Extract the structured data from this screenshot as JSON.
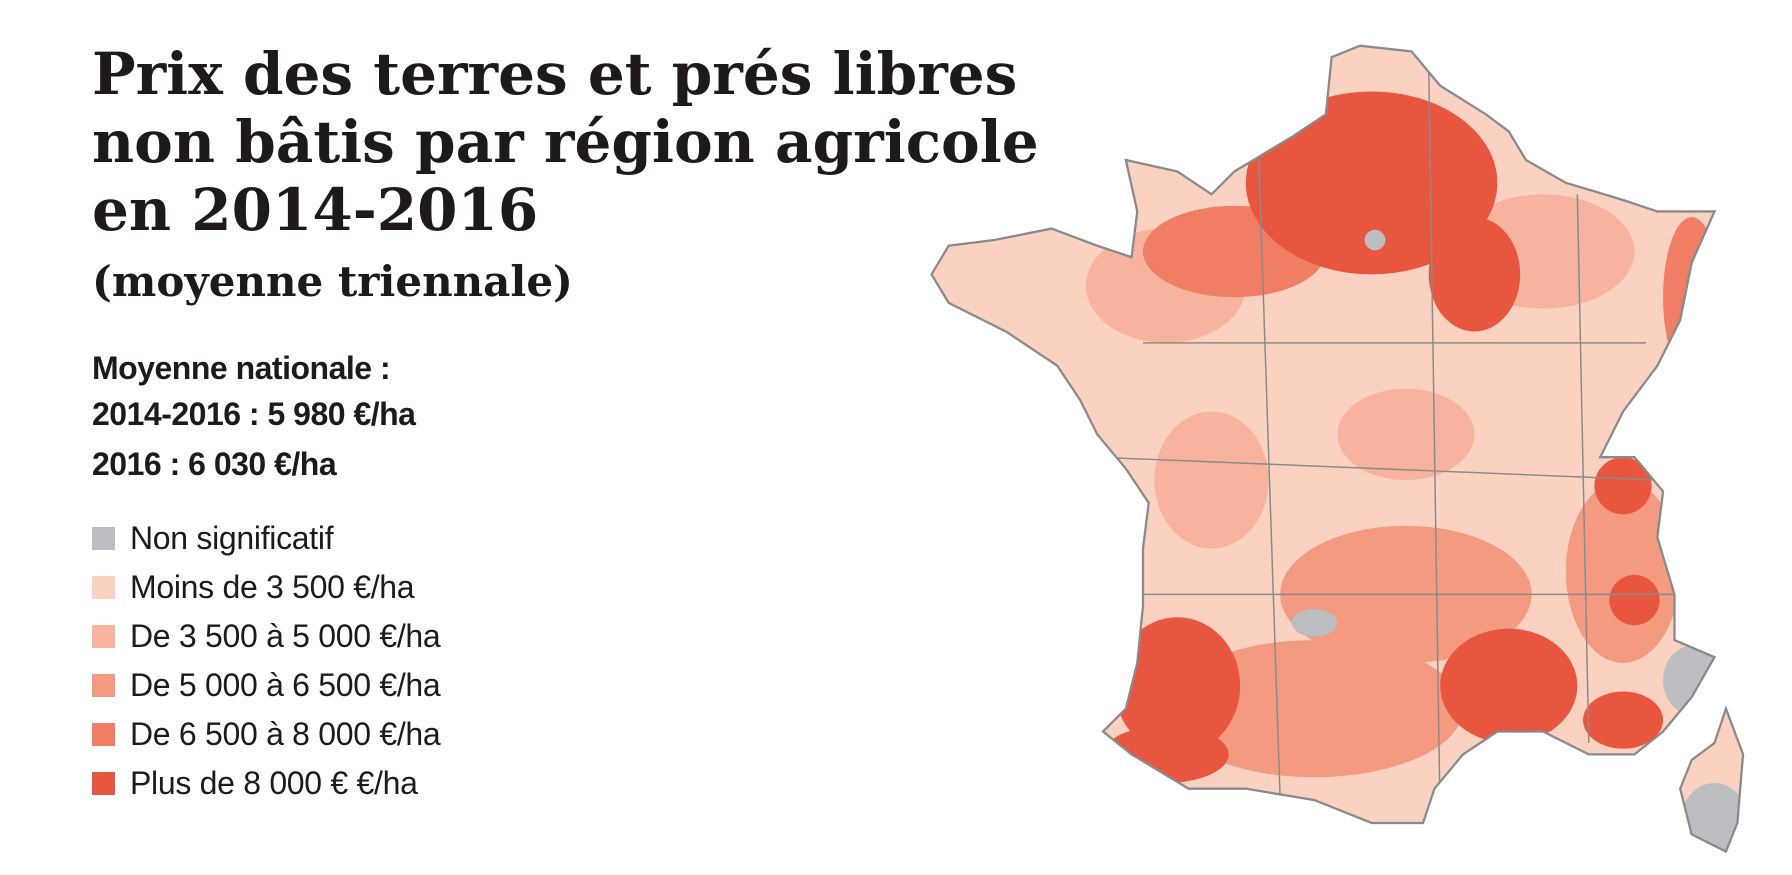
{
  "title": {
    "lines": [
      "Prix des terres et prés libres",
      "non bâtis par région agricole",
      "en 2014-2016"
    ],
    "subtitle": "(moyenne triennale)"
  },
  "national": {
    "heading": "Moyenne nationale :",
    "lines": [
      "2014-2016 : 5 980 €/ha",
      "2016 : 6 030 €/ha"
    ]
  },
  "legend": {
    "items": [
      {
        "label": "Non significatif",
        "color": "#bdbec1"
      },
      {
        "label": "Moins de 3 500 €/ha",
        "color": "#fbd2c2"
      },
      {
        "label": "De 3 500 à 5 000 €/ha",
        "color": "#f7b39e"
      },
      {
        "label": "De 5 000 à 6 500 €/ha",
        "color": "#f39a80"
      },
      {
        "label": "De 6 500 à 8 000 €/ha",
        "color": "#ef7e65"
      },
      {
        "label": "Plus de 8 000 € €/ha",
        "color": "#e9563f"
      }
    ]
  }
}
